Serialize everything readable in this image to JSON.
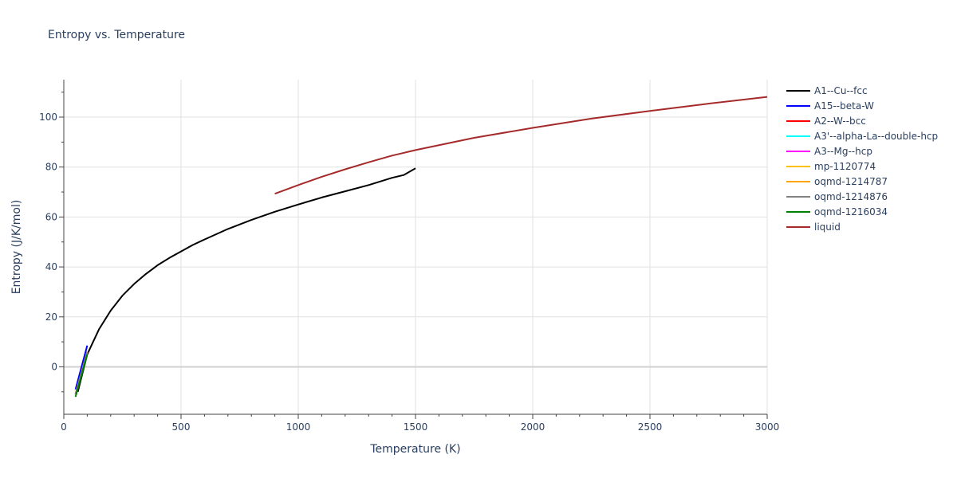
{
  "chart_data": {
    "type": "line",
    "title": "Entropy vs. Temperature",
    "xlabel": "Temperature (K)",
    "ylabel": "Entropy (J/K/mol)",
    "xlim": [
      0,
      3000
    ],
    "ylim": [
      -19,
      115
    ],
    "xticks": [
      0,
      500,
      1000,
      1500,
      2000,
      2500,
      3000
    ],
    "yticks": [
      0,
      20,
      40,
      60,
      80,
      100
    ],
    "grid": true,
    "legend_position": "right",
    "series": [
      {
        "name": "A1--Cu--fcc",
        "color": "#000000",
        "x": [
          60,
          100,
          150,
          200,
          250,
          300,
          350,
          400,
          450,
          500,
          550,
          600,
          700,
          800,
          900,
          1000,
          1100,
          1200,
          1300,
          1400,
          1450,
          1500
        ],
        "y": [
          -10,
          5,
          15,
          22.5,
          28.5,
          33.2,
          37.2,
          40.7,
          43.6,
          46.2,
          48.8,
          51,
          55.2,
          58.8,
          62.1,
          65,
          67.8,
          70.3,
          72.8,
          75.7,
          76.8,
          79.5
        ]
      },
      {
        "name": "A15--beta-W",
        "color": "#0000ff",
        "x": [
          50,
          100
        ],
        "y": [
          -9,
          8.5
        ]
      },
      {
        "name": "A2--W--bcc",
        "color": "#ff0000",
        "x": [
          50,
          100
        ],
        "y": [
          -11,
          6
        ]
      },
      {
        "name": "A3'--alpha-La--double-hcp",
        "color": "#00ffff",
        "x": [
          50,
          100
        ],
        "y": [
          -11,
          6
        ]
      },
      {
        "name": "A3--Mg--hcp",
        "color": "#ff00ff",
        "x": [
          50,
          100
        ],
        "y": [
          -11,
          6
        ]
      },
      {
        "name": "mp-1120774",
        "color": "#ffc000",
        "x": [
          50,
          100
        ],
        "y": [
          -11,
          6
        ]
      },
      {
        "name": "oqmd-1214787",
        "color": "#ffa500",
        "x": [
          50,
          100
        ],
        "y": [
          -11,
          6
        ]
      },
      {
        "name": "oqmd-1214876",
        "color": "#808080",
        "x": [
          50,
          100
        ],
        "y": [
          -11,
          6
        ]
      },
      {
        "name": "oqmd-1216034",
        "color": "#008000",
        "x": [
          50,
          100
        ],
        "y": [
          -12,
          5
        ]
      },
      {
        "name": "liquid",
        "color": "#a52a2a",
        "x": [
          900,
          1000,
          1100,
          1200,
          1300,
          1400,
          1500,
          1750,
          2000,
          2250,
          2500,
          2750,
          3000
        ],
        "y": [
          69.3,
          72.8,
          76.1,
          79.1,
          81.9,
          84.6,
          86.8,
          91.7,
          95.7,
          99.4,
          102.5,
          105.4,
          108.1
        ]
      }
    ]
  }
}
